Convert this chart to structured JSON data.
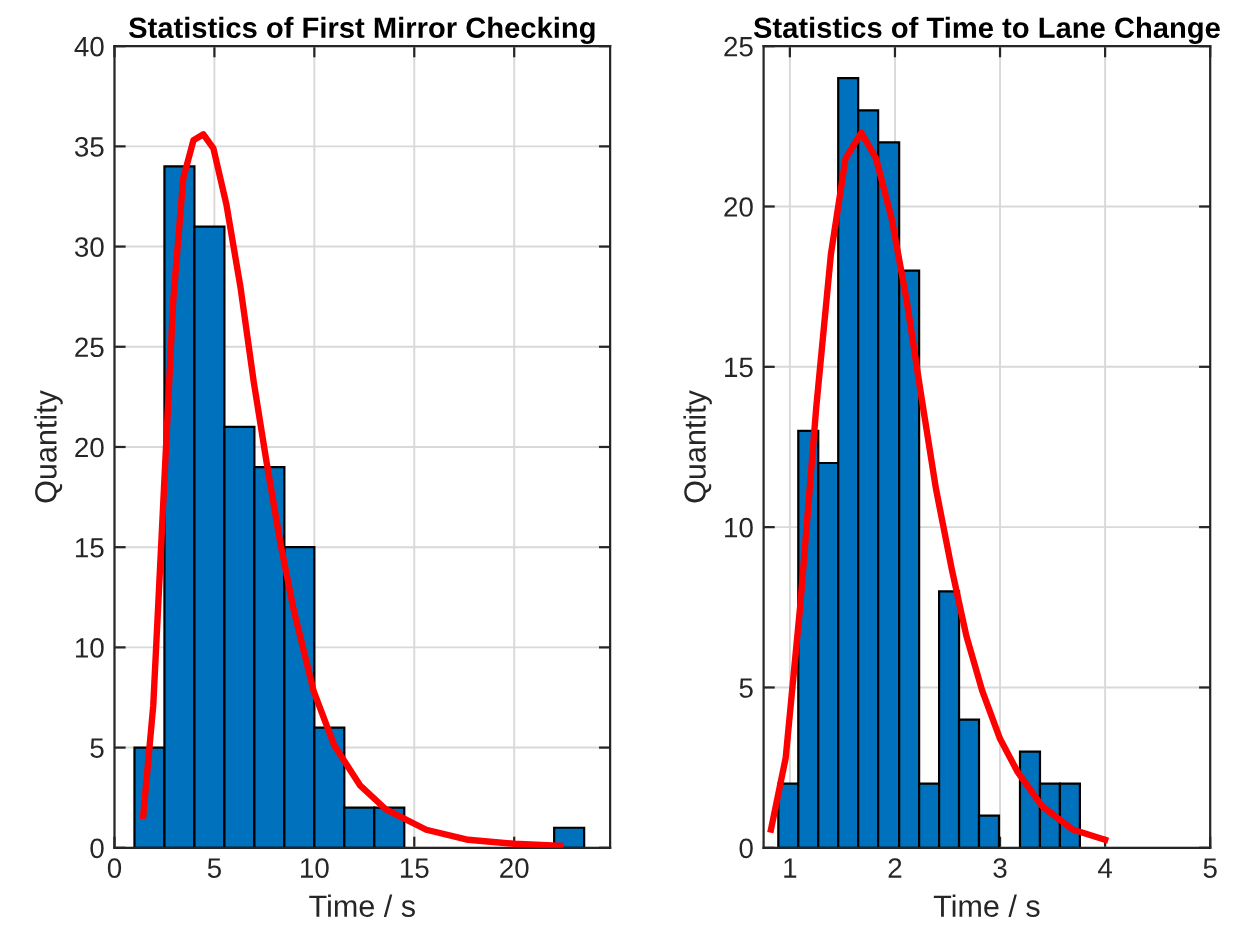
{
  "chart_data": [
    {
      "type": "histogram",
      "title": "Statistics of First Mirror Checking",
      "xlabel": "Time / s",
      "ylabel": "Quantity",
      "bins": [
        1,
        2.5,
        4,
        5.5,
        7,
        8.5,
        10,
        11.5,
        13,
        14.5,
        16,
        17.5,
        19,
        20.5,
        22,
        23.5
      ],
      "values": [
        5,
        34,
        31,
        21,
        19,
        15,
        6,
        2,
        2,
        0,
        0,
        0,
        0,
        0,
        1
      ],
      "color": "#0072bd",
      "series": [
        {
          "type": "line",
          "color": "#ff0000",
          "x": [
            1.44,
            1.94,
            2.44,
            2.94,
            3.44,
            3.95,
            4.45,
            4.95,
            5.6,
            6.3,
            6.96,
            7.6,
            8.3,
            8.96,
            9.97,
            11.0,
            12.3,
            13.6,
            15.6,
            17.7,
            20,
            22.3
          ],
          "values": [
            1.6,
            7.1,
            17.2,
            27.3,
            33.4,
            35.3,
            35.6,
            34.9,
            32.1,
            28.0,
            23.3,
            19.3,
            15.2,
            11.9,
            7.8,
            5.1,
            3.1,
            1.9,
            0.9,
            0.4,
            0.2,
            0.1
          ]
        }
      ],
      "xlim": [
        0,
        24.8
      ],
      "xticks": [
        0,
        5,
        10,
        15,
        20
      ],
      "ylim": [
        0,
        40
      ],
      "yticks": [
        0,
        5,
        10,
        15,
        20,
        25,
        30,
        35,
        40
      ],
      "grid": true
    },
    {
      "type": "histogram",
      "title": "Statistics of Time to Lane Change",
      "xlabel": "Time / s",
      "ylabel": "Quantity",
      "bins": [
        0.89,
        1.08,
        1.27,
        1.46,
        1.65,
        1.84,
        2.04,
        2.23,
        2.42,
        2.61,
        2.8,
        2.99,
        3.19,
        3.38,
        3.57,
        3.76
      ],
      "values": [
        2,
        13,
        12,
        24,
        23,
        22,
        18,
        2,
        8,
        4,
        1,
        0,
        3,
        2,
        2
      ],
      "color": "#0072bd",
      "series": [
        {
          "type": "line",
          "color": "#ff0000",
          "x": [
            0.82,
            0.96,
            1.1,
            1.25,
            1.39,
            1.53,
            1.68,
            1.82,
            1.97,
            2.11,
            2.25,
            2.39,
            2.54,
            2.68,
            2.83,
            3.0,
            3.17,
            3.4,
            3.69,
            4.0
          ],
          "values": [
            0.57,
            2.8,
            7.6,
            13.7,
            18.5,
            21.5,
            22.3,
            21.5,
            19.6,
            17.1,
            14.1,
            11.2,
            8.7,
            6.6,
            4.9,
            3.4,
            2.35,
            1.3,
            0.57,
            0.25
          ]
        }
      ],
      "xlim": [
        0.75,
        5
      ],
      "xticks": [
        1,
        2,
        3,
        4,
        5
      ],
      "ylim": [
        0,
        25
      ],
      "yticks": [
        0,
        5,
        10,
        15,
        20,
        25
      ],
      "grid": true
    }
  ]
}
